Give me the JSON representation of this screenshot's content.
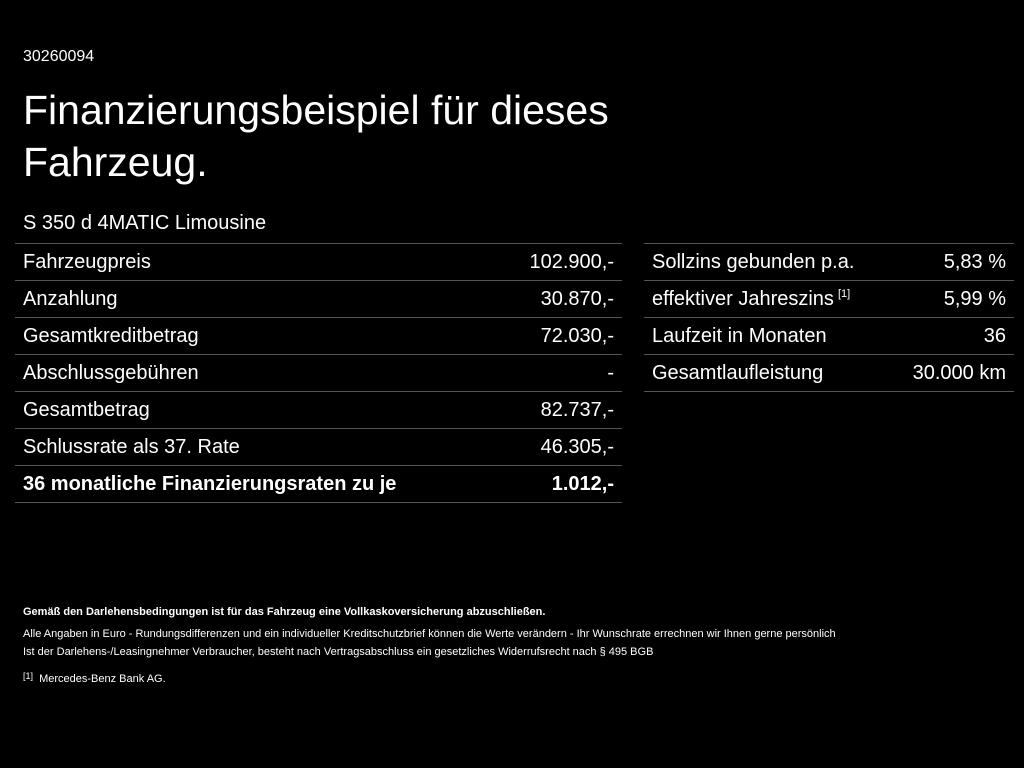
{
  "id": "30260094",
  "title": "Finanzierungsbeispiel für dieses Fahrzeug.",
  "model": "S 350 d 4MATIC Limousine",
  "left_table": {
    "rows": [
      [
        "Fahrzeugpreis",
        "102.900,-"
      ],
      [
        "Anzahlung",
        "30.870,-"
      ],
      [
        "Gesamtkreditbetrag",
        "72.030,-"
      ],
      [
        "Abschlussgebühren",
        "-"
      ],
      [
        "Gesamtbetrag",
        "82.737,-"
      ],
      [
        "Schlussrate als 37. Rate",
        "46.305,-"
      ],
      [
        "36 monatliche Finanzierungsraten zu je",
        "1.012,-"
      ]
    ]
  },
  "right_table": {
    "rows": [
      {
        "label": "Sollzins gebunden p.a.",
        "value": "5,83 %"
      },
      {
        "label": "effektiver Jahreszins",
        "note": "[1]",
        "value": "5,99 %"
      },
      {
        "label": "Laufzeit in Monaten",
        "value": "36"
      },
      {
        "label": "Gesamtlaufleistung",
        "value": "30.000 km"
      }
    ]
  },
  "notes": [
    "Gemäß den Darlehensbedingungen ist für das Fahrzeug eine Vollkaskoversicherung abzuschließen.",
    "Alle Angaben in Euro - Rundungsdifferenzen und ein individueller Kreditschutzbrief können die Werte verändern - Ihr Wunschrate errechnen wir Ihnen gerne persönlich",
    "Ist der Darlehens-/Leasingnehmer Verbraucher, besteht nach Vertragsabschluss ein gesetzliches Widerrufsrecht nach § 495 BGB"
  ],
  "footnote": {
    "marker": "[1]",
    "text": "Mercedes-Benz Bank AG."
  }
}
